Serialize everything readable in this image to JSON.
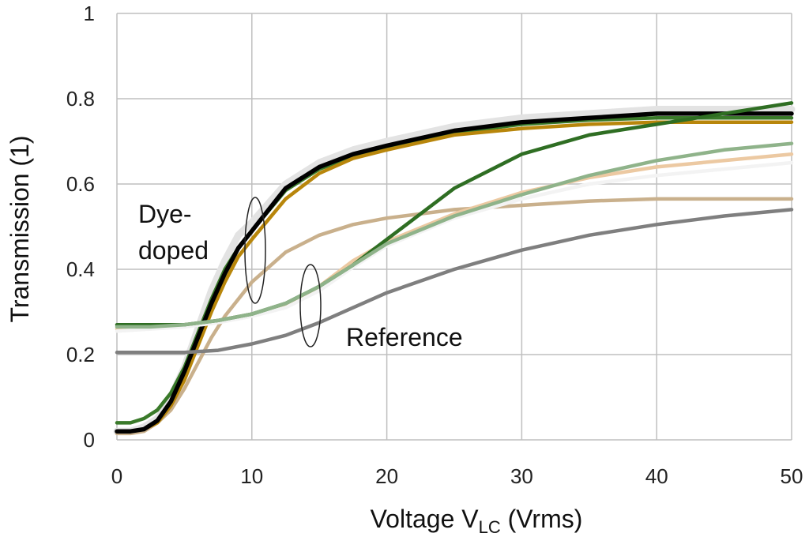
{
  "chart_data": {
    "type": "line",
    "title": "",
    "xlabel": "Voltage V",
    "xlabel_sub": "LC",
    "xlabel_units": " (Vrms)",
    "ylabel": "Transmission (1)",
    "xlim": [
      0,
      50
    ],
    "ylim": [
      0,
      1
    ],
    "xticks": [
      0,
      10,
      20,
      30,
      40,
      50
    ],
    "yticks": [
      0,
      0.2,
      0.4,
      0.6,
      0.8,
      1
    ],
    "xtick_labels": [
      "0",
      "10",
      "20",
      "30",
      "40",
      "50"
    ],
    "ytick_labels": [
      "0",
      "0.2",
      "0.4",
      "0.6",
      "0.8",
      "1"
    ],
    "grid": true,
    "annotations": [
      {
        "id": "dye",
        "lines": [
          "Dye-",
          "doped"
        ]
      },
      {
        "id": "ref",
        "lines": [
          "Reference"
        ]
      }
    ],
    "series": [
      {
        "name": "dye-light-gray",
        "group": "Dye-doped",
        "color": "#e3e3e3",
        "x": [
          0,
          1,
          2,
          3,
          4,
          5,
          6,
          7,
          8,
          9,
          10,
          12.5,
          15,
          17.5,
          20,
          25,
          30,
          35,
          40,
          45,
          50
        ],
        "y": [
          0.02,
          0.02,
          0.03,
          0.05,
          0.1,
          0.17,
          0.26,
          0.35,
          0.42,
          0.48,
          0.51,
          0.6,
          0.65,
          0.68,
          0.7,
          0.735,
          0.755,
          0.765,
          0.775,
          0.775,
          0.775
        ]
      },
      {
        "name": "dye-dark-green",
        "group": "Dye-doped",
        "color": "#3a7a2a",
        "x": [
          0,
          1,
          2,
          3,
          4,
          5,
          6,
          7,
          8,
          9,
          10,
          12.5,
          15,
          17.5,
          20,
          25,
          30,
          35,
          40,
          45,
          50
        ],
        "y": [
          0.04,
          0.04,
          0.05,
          0.07,
          0.11,
          0.17,
          0.25,
          0.33,
          0.4,
          0.45,
          0.49,
          0.585,
          0.635,
          0.665,
          0.685,
          0.72,
          0.74,
          0.75,
          0.755,
          0.755,
          0.755
        ]
      },
      {
        "name": "dye-tan",
        "group": "Dye-doped",
        "color": "#c9b08c",
        "x": [
          0,
          1,
          2,
          3,
          4,
          5,
          6,
          7,
          8,
          9,
          10,
          12.5,
          15,
          17.5,
          20,
          25,
          30,
          35,
          40,
          45,
          50
        ],
        "y": [
          0.015,
          0.015,
          0.02,
          0.04,
          0.07,
          0.12,
          0.18,
          0.24,
          0.29,
          0.33,
          0.37,
          0.44,
          0.48,
          0.505,
          0.52,
          0.54,
          0.55,
          0.56,
          0.565,
          0.565,
          0.565
        ]
      },
      {
        "name": "dye-gold",
        "group": "Dye-doped",
        "color": "#b8860b",
        "x": [
          0,
          1,
          2,
          3,
          4,
          5,
          6,
          7,
          8,
          9,
          10,
          12.5,
          15,
          17.5,
          20,
          25,
          30,
          35,
          40,
          45,
          50
        ],
        "y": [
          0.02,
          0.02,
          0.025,
          0.04,
          0.08,
          0.14,
          0.22,
          0.3,
          0.37,
          0.43,
          0.47,
          0.565,
          0.625,
          0.66,
          0.68,
          0.715,
          0.73,
          0.74,
          0.745,
          0.745,
          0.745
        ]
      },
      {
        "name": "dye-black",
        "group": "Dye-doped",
        "color": "#000000",
        "x": [
          0,
          1,
          2,
          3,
          4,
          5,
          6,
          7,
          8,
          9,
          10,
          12.5,
          15,
          17.5,
          20,
          25,
          30,
          35,
          40,
          45,
          50
        ],
        "y": [
          0.02,
          0.02,
          0.025,
          0.045,
          0.09,
          0.16,
          0.24,
          0.32,
          0.39,
          0.45,
          0.49,
          0.59,
          0.64,
          0.67,
          0.69,
          0.725,
          0.745,
          0.755,
          0.765,
          0.765,
          0.765
        ]
      },
      {
        "name": "ref-light-tan",
        "group": "Reference",
        "color": "#ecc9a2",
        "x": [
          0,
          2.5,
          5,
          7.5,
          10,
          12.5,
          15,
          17.5,
          20,
          25,
          30,
          35,
          40,
          45,
          50
        ],
        "y": [
          0.26,
          0.265,
          0.27,
          0.28,
          0.295,
          0.315,
          0.36,
          0.42,
          0.465,
          0.53,
          0.58,
          0.615,
          0.64,
          0.655,
          0.67
        ]
      },
      {
        "name": "ref-white",
        "group": "Reference",
        "color": "#f3f3f3",
        "x": [
          0,
          2.5,
          5,
          7.5,
          10,
          12.5,
          15,
          17.5,
          20,
          25,
          30,
          35,
          40,
          45,
          50
        ],
        "y": [
          0.255,
          0.26,
          0.265,
          0.275,
          0.29,
          0.31,
          0.35,
          0.405,
          0.455,
          0.52,
          0.565,
          0.6,
          0.62,
          0.635,
          0.65
        ]
      },
      {
        "name": "ref-medium-green",
        "group": "Reference",
        "color": "#2f6e23",
        "x": [
          0,
          2.5,
          5,
          7.5,
          10,
          12.5,
          15,
          17.5,
          20,
          25,
          30,
          35,
          40,
          45,
          50
        ],
        "y": [
          0.27,
          0.27,
          0.27,
          0.28,
          0.295,
          0.32,
          0.36,
          0.41,
          0.47,
          0.59,
          0.67,
          0.715,
          0.74,
          0.765,
          0.79
        ]
      },
      {
        "name": "ref-sage",
        "group": "Reference",
        "color": "#8fb38a",
        "x": [
          0,
          2.5,
          5,
          7.5,
          10,
          12.5,
          15,
          17.5,
          20,
          25,
          30,
          35,
          40,
          45,
          50
        ],
        "y": [
          0.265,
          0.265,
          0.27,
          0.28,
          0.295,
          0.32,
          0.36,
          0.41,
          0.46,
          0.525,
          0.575,
          0.62,
          0.655,
          0.68,
          0.695
        ]
      },
      {
        "name": "ref-gray",
        "group": "Reference",
        "color": "#7f7f7f",
        "x": [
          0,
          2.5,
          5,
          7.5,
          10,
          12.5,
          15,
          17.5,
          20,
          25,
          30,
          35,
          40,
          45,
          50
        ],
        "y": [
          0.205,
          0.205,
          0.205,
          0.21,
          0.225,
          0.245,
          0.275,
          0.31,
          0.345,
          0.4,
          0.445,
          0.48,
          0.505,
          0.525,
          0.54
        ]
      }
    ]
  }
}
